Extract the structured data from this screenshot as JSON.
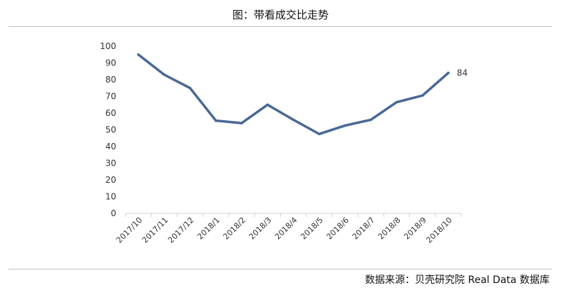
{
  "title": "图：带看成交比走势",
  "source": "数据来源：贝壳研究院 Real Data 数据库",
  "chart_data": {
    "type": "line",
    "categories": [
      "2017/10",
      "2017/11",
      "2017/12",
      "2018/1",
      "2018/2",
      "2018/3",
      "2018/4",
      "2018/5",
      "2018/6",
      "2018/7",
      "2018/8",
      "2018/9",
      "2018/10"
    ],
    "series": [
      {
        "values": [
          95,
          83,
          75,
          55.5,
          54,
          65,
          56,
          47.5,
          52.5,
          56,
          66.5,
          70.5,
          84
        ],
        "color": "#4a6896"
      }
    ],
    "yticks": [
      "0",
      "10",
      "20",
      "30",
      "40",
      "50",
      "60",
      "70",
      "80",
      "90",
      "100"
    ],
    "ylim": [
      0,
      100
    ],
    "data_labels": [
      {
        "index": 12,
        "text": "84"
      }
    ],
    "grid": false,
    "legend": "none"
  }
}
